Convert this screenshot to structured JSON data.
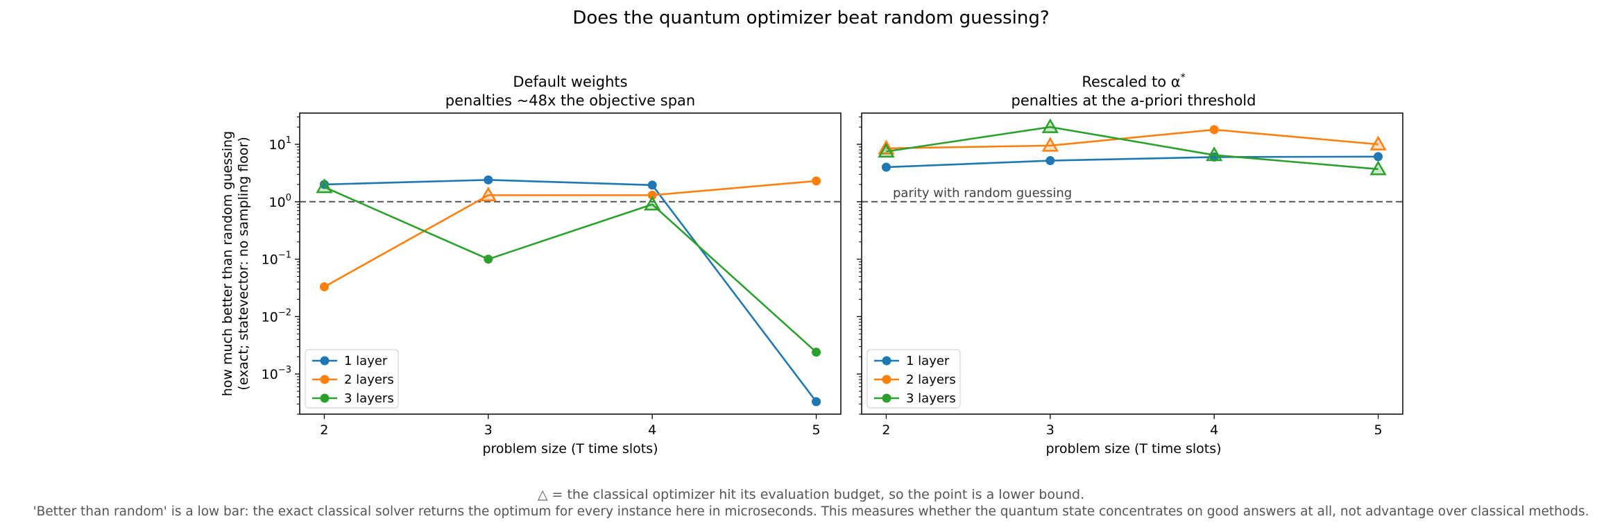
{
  "title": "Does the quantum optimizer beat random guessing?",
  "footnote": {
    "line1": "△ = the classical optimizer hit its evaluation budget, so the point is a lower bound.",
    "line2": "'Better than random' is a low bar: the exact classical solver returns the optimum for every instance here in microseconds. This measures whether the quantum state concentrates on good answers at all, not advantage over classical methods."
  },
  "colors": {
    "1 layer": "#1f77b4",
    "2 layers": "#ff7f0e",
    "3 layers": "#2ca02c",
    "reference": "#555555"
  },
  "chart_data": [
    {
      "type": "line",
      "title": "Default weights",
      "subtitle": "penalties ~48x the objective span",
      "xlabel": "problem size (T time slots)",
      "ylabel": "how much better than random guessing",
      "ylabel2": "(exact; statevector: no sampling floor)",
      "yscale": "log",
      "ylim": [
        0.0002,
        35
      ],
      "xlim": [
        1.85,
        5.15
      ],
      "xticks": [
        2,
        3,
        4,
        5
      ],
      "yticks": [
        {
          "v": 0.001,
          "exp": "−3"
        },
        {
          "v": 0.01,
          "exp": "−2"
        },
        {
          "v": 0.1,
          "exp": "−1"
        },
        {
          "v": 1,
          "exp": "0"
        },
        {
          "v": 10,
          "exp": "1"
        }
      ],
      "reference_line": 1,
      "legend": "lower-left",
      "x": [
        2,
        3,
        4,
        5
      ],
      "series": [
        {
          "name": "1 layer",
          "values": [
            2.0,
            2.4,
            1.95,
            0.00033
          ],
          "lower_bound": [
            false,
            false,
            false,
            false
          ]
        },
        {
          "name": "2 layers",
          "values": [
            0.033,
            1.3,
            1.3,
            2.3
          ],
          "lower_bound": [
            false,
            true,
            false,
            false
          ]
        },
        {
          "name": "3 layers",
          "values": [
            1.8,
            0.1,
            0.9,
            0.0024
          ],
          "lower_bound": [
            true,
            false,
            true,
            false
          ]
        }
      ]
    },
    {
      "type": "line",
      "title": "Rescaled to α",
      "title_sup": "*",
      "subtitle": "penalties at the a-priori threshold",
      "xlabel": "problem size (T time slots)",
      "yscale": "log",
      "ylim": [
        0.0002,
        35
      ],
      "xlim": [
        1.85,
        5.15
      ],
      "xticks": [
        2,
        3,
        4,
        5
      ],
      "reference_line": 1,
      "reference_label": "parity with random guessing",
      "legend": "lower-left",
      "x": [
        2,
        3,
        4,
        5
      ],
      "series": [
        {
          "name": "1 layer",
          "values": [
            4.0,
            5.2,
            6.0,
            6.1
          ],
          "lower_bound": [
            false,
            false,
            false,
            false
          ]
        },
        {
          "name": "2 layers",
          "values": [
            8.5,
            9.5,
            18.0,
            10.0
          ],
          "lower_bound": [
            true,
            true,
            false,
            true
          ]
        },
        {
          "name": "3 layers",
          "values": [
            7.5,
            20.0,
            6.5,
            3.7
          ],
          "lower_bound": [
            true,
            true,
            true,
            true
          ]
        }
      ]
    }
  ]
}
